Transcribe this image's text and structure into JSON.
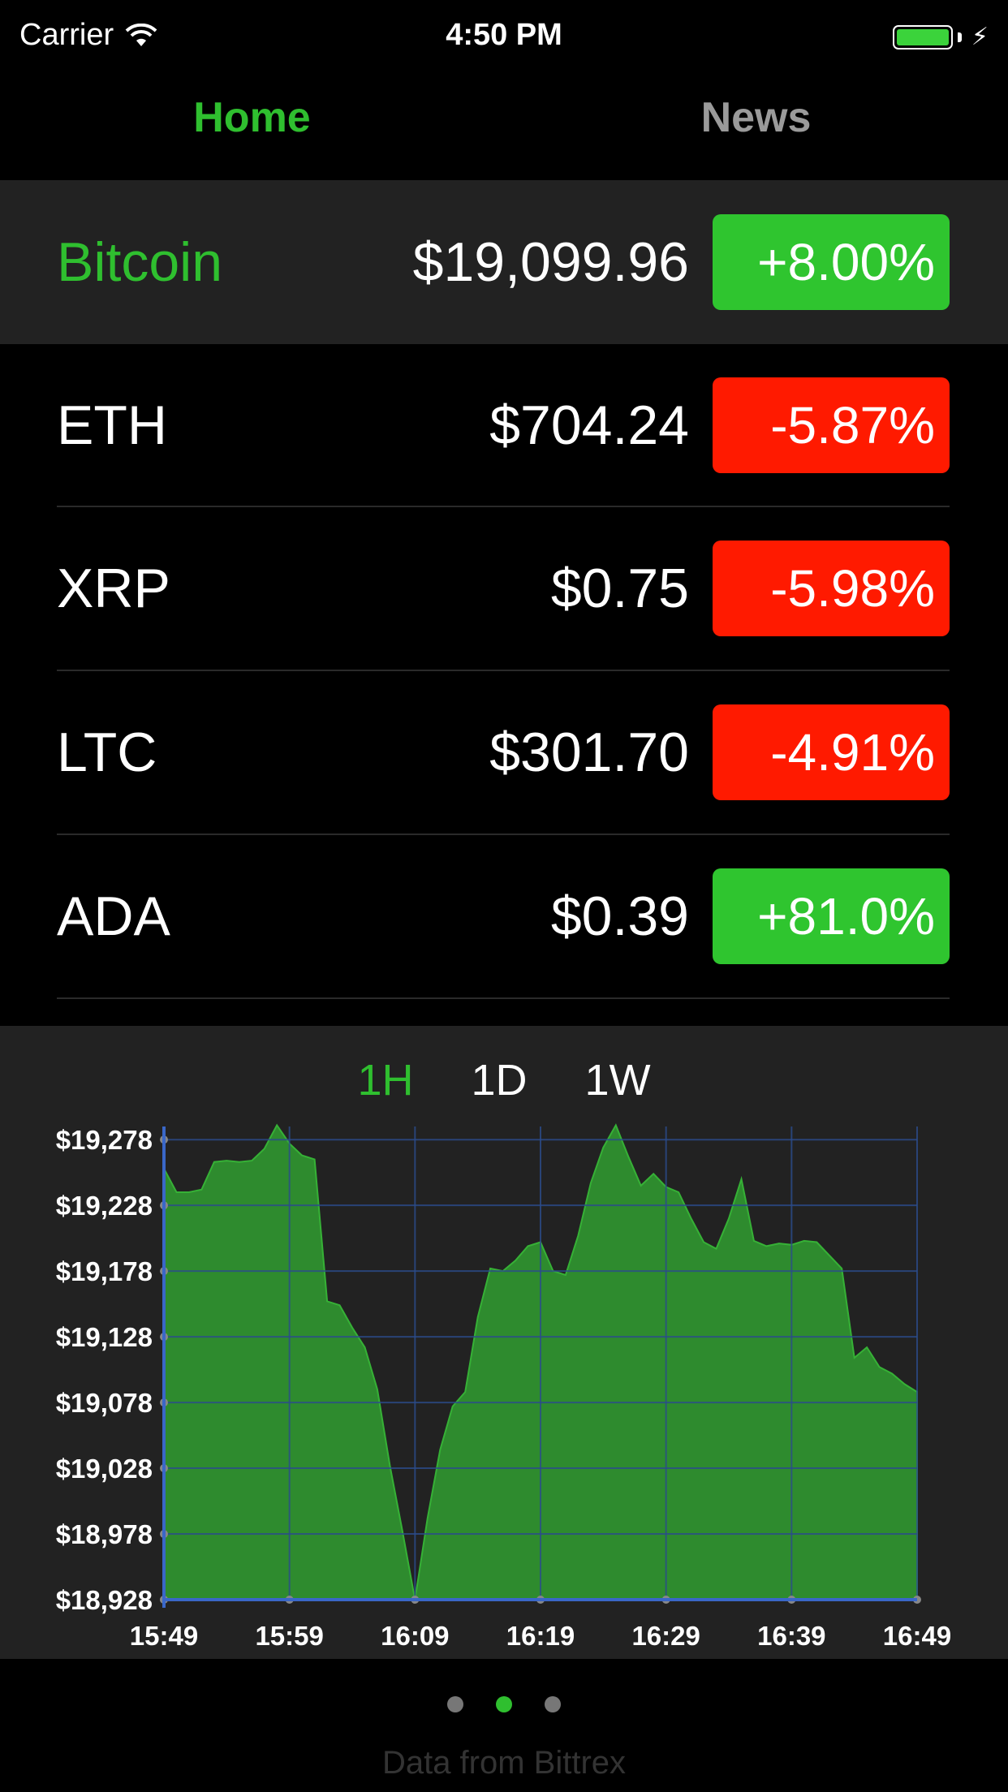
{
  "status_bar": {
    "carrier": "Carrier",
    "time": "4:50 PM"
  },
  "tabs": [
    {
      "label": "Home",
      "active": true
    },
    {
      "label": "News",
      "active": false
    }
  ],
  "coins": [
    {
      "name": "Bitcoin",
      "price": "$19,099.96",
      "change": "+8.00%",
      "direction": "up",
      "featured": true
    },
    {
      "name": "ETH",
      "price": "$704.24",
      "change": "-5.87%",
      "direction": "down"
    },
    {
      "name": "XRP",
      "price": "$0.75",
      "change": "-5.98%",
      "direction": "down"
    },
    {
      "name": "LTC",
      "price": "$301.70",
      "change": "-4.91%",
      "direction": "down"
    },
    {
      "name": "ADA",
      "price": "$0.39",
      "change": "+81.0%",
      "direction": "up"
    }
  ],
  "ranges": [
    {
      "label": "1H",
      "active": true
    },
    {
      "label": "1D",
      "active": false
    },
    {
      "label": "1W",
      "active": false
    }
  ],
  "colors": {
    "accent": "#2fbf2f",
    "up": "#2fc52f",
    "down": "#ff1a00",
    "fill": "#2e8b2e",
    "grid": "#2b4c8c"
  },
  "chart_data": {
    "type": "area",
    "ylim": [
      18928,
      19288
    ],
    "y_ticks": [
      "$19,278",
      "$19,228",
      "$19,178",
      "$19,128",
      "$19,078",
      "$19,028",
      "$18,978",
      "$18,928"
    ],
    "x_ticks": [
      "15:49",
      "15:59",
      "16:09",
      "16:19",
      "16:29",
      "16:39",
      "16:49"
    ],
    "series": [
      {
        "x": [
          "15:49",
          "15:50",
          "15:51",
          "15:52",
          "15:53",
          "15:54",
          "15:55",
          "15:56",
          "15:57",
          "15:58",
          "15:59",
          "16:00",
          "16:01",
          "16:02",
          "16:03",
          "16:04",
          "16:05",
          "16:06",
          "16:07",
          "16:08",
          "16:09",
          "16:10",
          "16:11",
          "16:12",
          "16:13",
          "16:14",
          "16:15",
          "16:16",
          "16:17",
          "16:18",
          "16:19",
          "16:20",
          "16:21",
          "16:22",
          "16:23",
          "16:24",
          "16:25",
          "16:26",
          "16:27",
          "16:28",
          "16:29",
          "16:30",
          "16:31",
          "16:32",
          "16:33",
          "16:34",
          "16:35",
          "16:36",
          "16:37",
          "16:38",
          "16:39",
          "16:40",
          "16:41",
          "16:42",
          "16:43",
          "16:44",
          "16:45",
          "16:46",
          "16:47",
          "16:48",
          "16:49"
        ],
        "values": [
          19256,
          19238,
          19238,
          19240,
          19261,
          19262,
          19261,
          19262,
          19271,
          19289,
          19275,
          19266,
          19263,
          19155,
          19152,
          19135,
          19120,
          19088,
          19030,
          18980,
          18928,
          18990,
          19042,
          19075,
          19086,
          19143,
          19180,
          19178,
          19186,
          19197,
          19200,
          19178,
          19175,
          19205,
          19245,
          19272,
          19289,
          19265,
          19243,
          19252,
          19242,
          19238,
          19218,
          19200,
          19195,
          19218,
          19248,
          19201,
          19197,
          19199,
          19198,
          19201,
          19200,
          19190,
          19180,
          19112,
          19120,
          19105,
          19100,
          19092,
          19086
        ]
      }
    ],
    "grid": true
  },
  "pager": {
    "count": 3,
    "active": 1
  },
  "footer": "Data from Bittrex"
}
